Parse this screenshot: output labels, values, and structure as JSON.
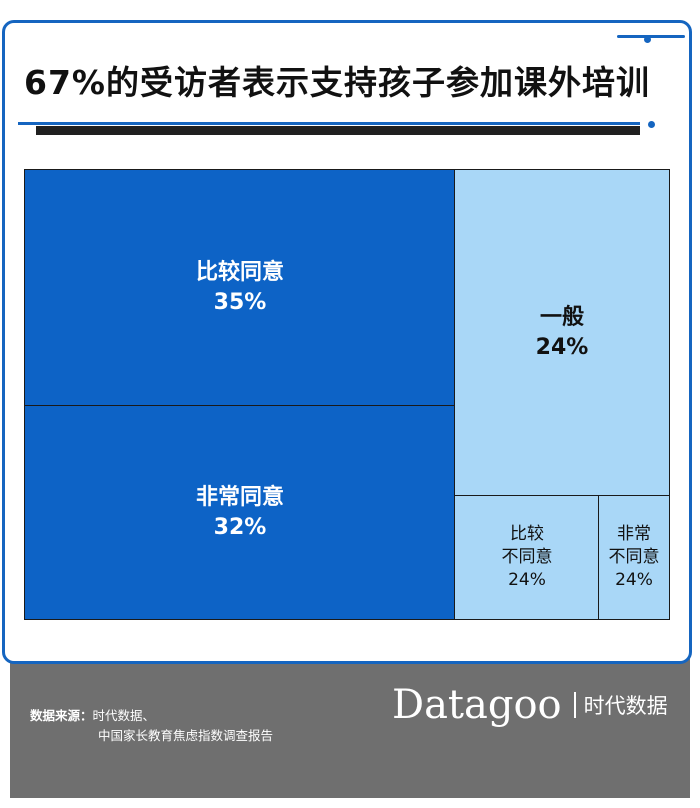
{
  "title": "67%的受访者表示支持孩子参加课外培训",
  "chart_data": {
    "type": "treemap",
    "title": "67%的受访者表示支持孩子参加课外培训",
    "items": [
      {
        "label": "比较同意",
        "value": 35,
        "display": "35%",
        "color": "#0d63c6"
      },
      {
        "label": "非常同意",
        "value": 32,
        "display": "32%",
        "color": "#0d63c6"
      },
      {
        "label": "一般",
        "value": 24,
        "display": "24%",
        "color": "#a9d7f7"
      },
      {
        "label_lines": [
          "比较",
          "不同意"
        ],
        "value": 24,
        "display": "24%",
        "color": "#a9d7f7"
      },
      {
        "label_lines": [
          "非常",
          "不同意"
        ],
        "value": 24,
        "display": "24%",
        "color": "#a9d7f7"
      }
    ]
  },
  "footer": {
    "source_label": "数据来源：",
    "source_line1": "时代数据、",
    "source_line2": "中国家长教育焦虑指数调查报告",
    "logo_word": "Datagoo",
    "logo_cn": "时代数据"
  }
}
